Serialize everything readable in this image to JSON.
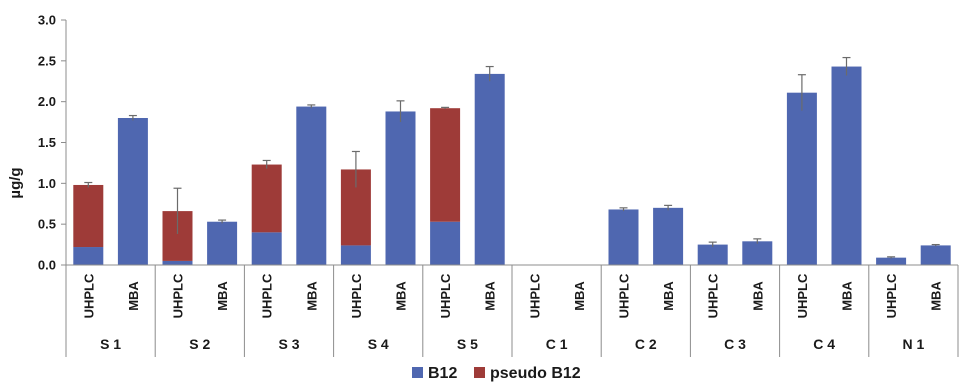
{
  "chart_data": {
    "type": "bar",
    "stacked": true,
    "ylabel": "µg/g",
    "ylim": [
      0,
      3.0
    ],
    "yticks": [
      "0.0",
      "0.5",
      "1.0",
      "1.5",
      "2.0",
      "2.5",
      "3.0"
    ],
    "grid": false,
    "legend_position": "bottom",
    "groups": [
      "S 1",
      "S 2",
      "S 3",
      "S 4",
      "S 5",
      "C 1",
      "C 2",
      "C 3",
      "C 4",
      "N 1"
    ],
    "methods": [
      "UHPLC",
      "MBA"
    ],
    "series": [
      {
        "name": "B12",
        "color": "#4f67b0",
        "values": [
          0.22,
          1.8,
          0.05,
          0.53,
          0.4,
          1.94,
          0.24,
          1.88,
          0.53,
          2.34,
          0.0,
          0.0,
          0.68,
          0.7,
          0.25,
          0.29,
          2.11,
          2.43,
          0.09,
          0.24
        ]
      },
      {
        "name": "pseudo B12",
        "color": "#9e3b38",
        "values": [
          0.76,
          0.0,
          0.61,
          0.0,
          0.83,
          0.0,
          0.93,
          0.0,
          1.39,
          0.0,
          0.0,
          0.0,
          0.0,
          0.0,
          0.0,
          0.0,
          0.0,
          0.0,
          0.0,
          0.0
        ]
      }
    ],
    "errors": [
      0.03,
      0.03,
      0.28,
      0.02,
      0.05,
      0.02,
      0.22,
      0.13,
      0.01,
      0.09,
      0.0,
      0.0,
      0.02,
      0.03,
      0.03,
      0.03,
      0.22,
      0.11,
      0.01,
      0.01
    ]
  }
}
